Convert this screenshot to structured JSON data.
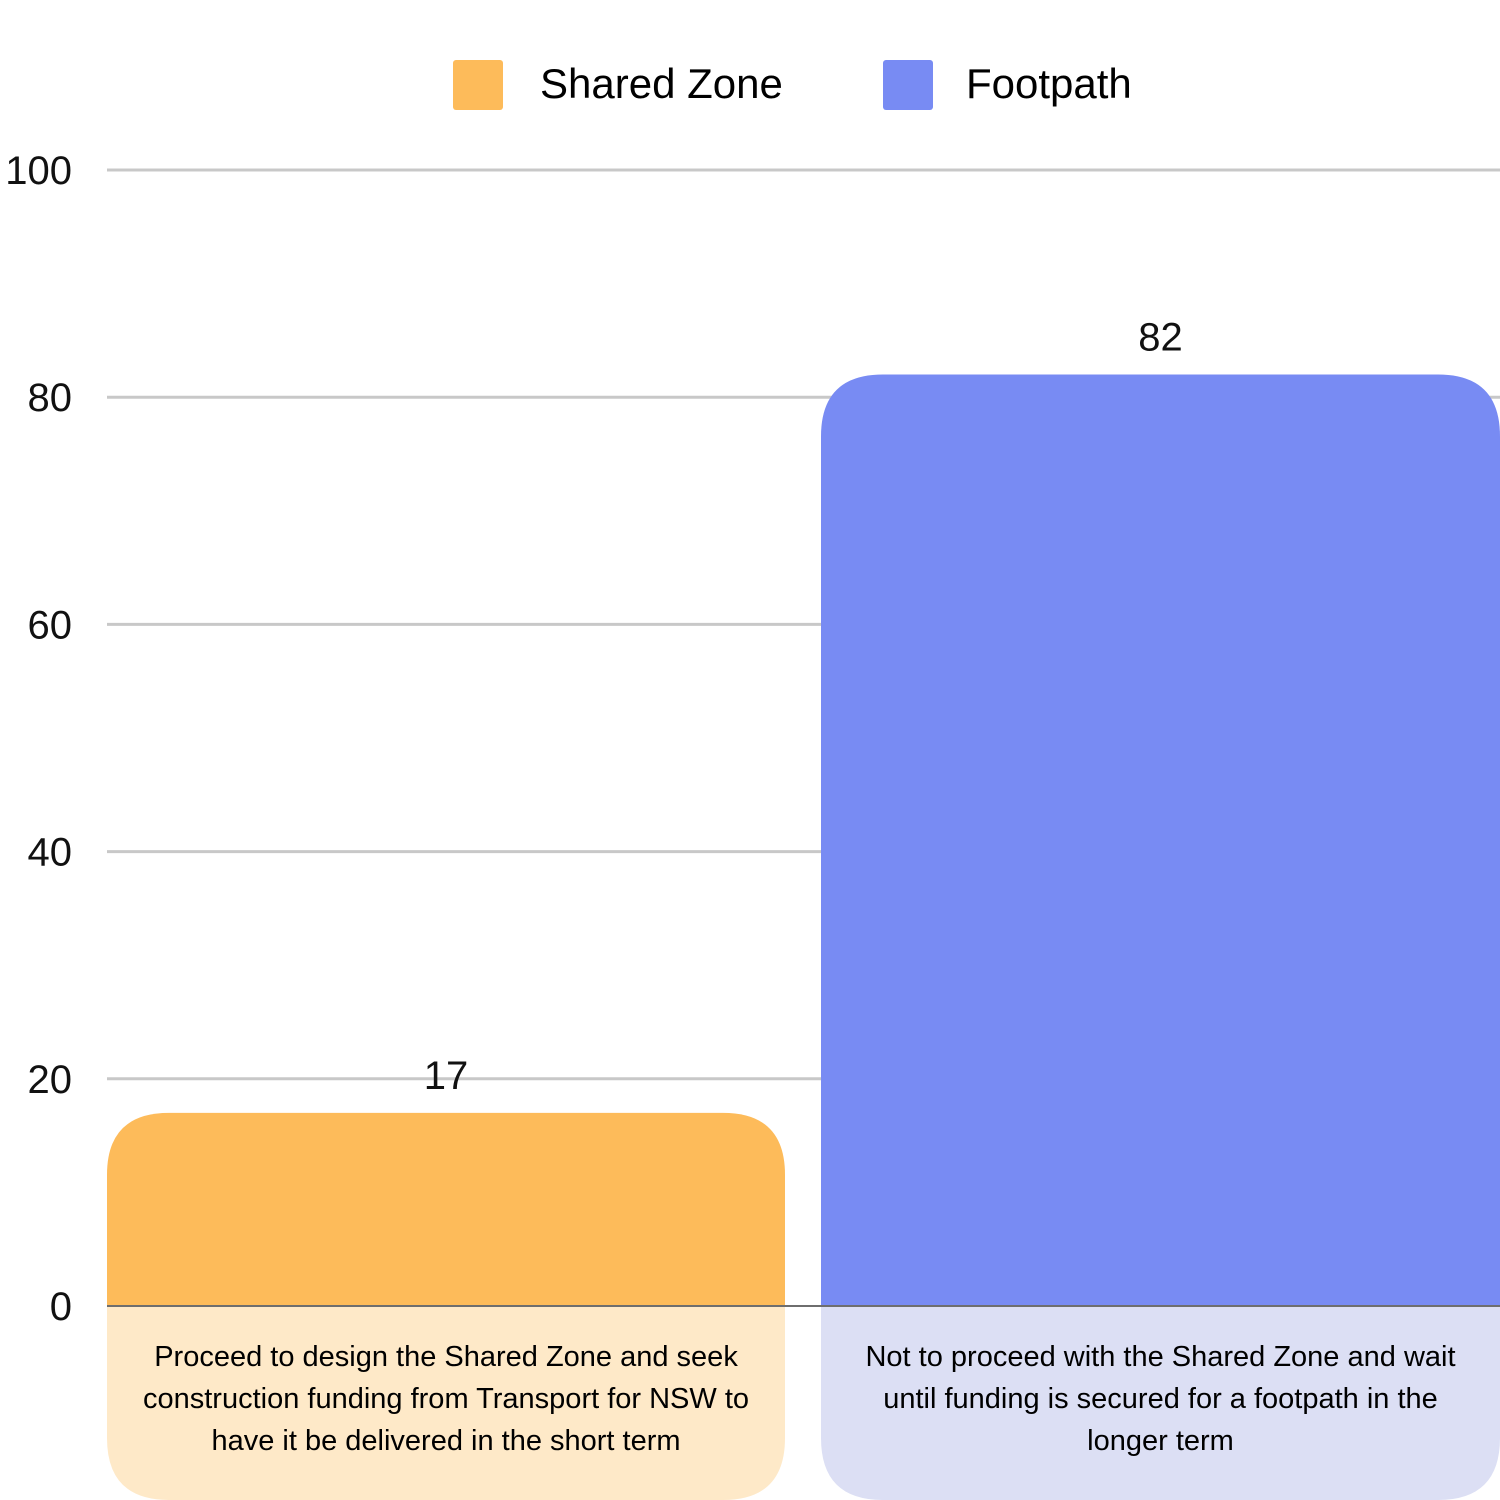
{
  "chart_data": {
    "type": "bar",
    "title": "",
    "xlabel": "",
    "ylabel": "",
    "ylim": [
      0,
      100
    ],
    "yticks": [
      0,
      20,
      40,
      60,
      80,
      100
    ],
    "grid": true,
    "legend": "top",
    "series": [
      {
        "name": "Shared Zone",
        "color": "#FDBB5A",
        "label_bg": "#FEE9C8",
        "value": 17,
        "category_lines": [
          "Proceed to design the Shared Zone and seek",
          "construction funding from Transport for NSW to",
          "have it be delivered in the short term"
        ]
      },
      {
        "name": "Footpath",
        "color": "#788BF3",
        "label_bg": "#DCDFF4",
        "value": 82,
        "category_lines": [
          "Not to proceed with the Shared Zone and wait",
          "until funding is secured for a footpath in the",
          "longer term"
        ]
      }
    ]
  }
}
